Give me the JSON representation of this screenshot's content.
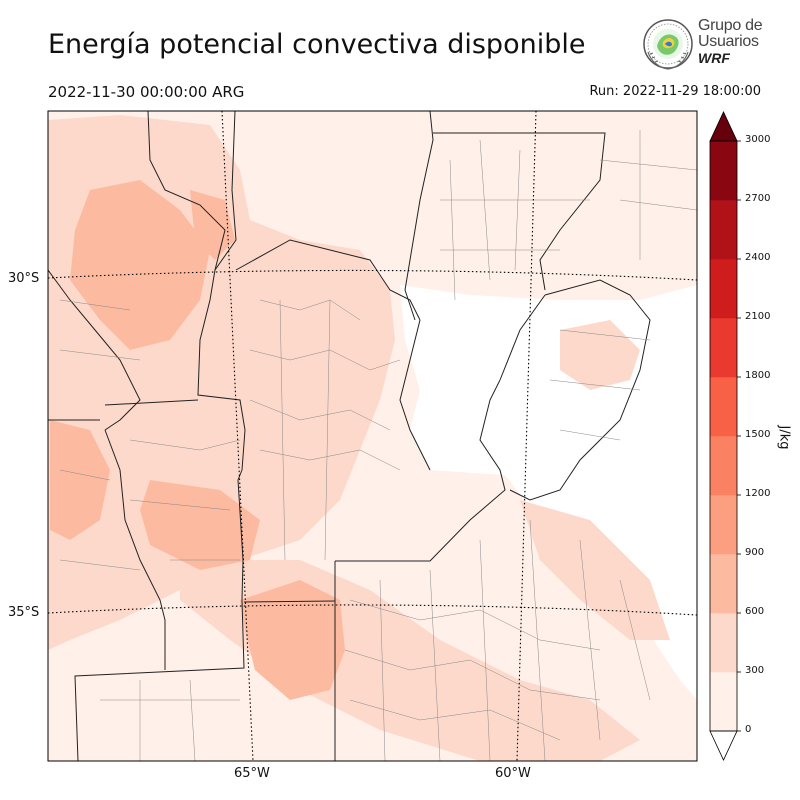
{
  "header": {
    "title": "Energía potencial convectiva disponible",
    "valid_time": "2022-11-30 00:00:00 ARG",
    "run_time": "Run: 2022-11-29 18:00:00"
  },
  "logo": {
    "line1": "Grupo de",
    "line2": "Usuarios",
    "brand": "WRF"
  },
  "map": {
    "lat_labels": [
      "30°S",
      "35°S"
    ],
    "lon_labels": [
      "65°W",
      "60°W"
    ]
  },
  "colorbar": {
    "unit": "J/kg",
    "ticks": [
      "0",
      "300",
      "600",
      "900",
      "1200",
      "1500",
      "1800",
      "2100",
      "2400",
      "2700",
      "3000"
    ],
    "colors": [
      "#fff0e9",
      "#fdd9cb",
      "#fcbba0",
      "#fc9f80",
      "#fa8262",
      "#f86146",
      "#ea3a30",
      "#cf1d1e",
      "#b11218",
      "#8a0712",
      "#67000d"
    ],
    "extend": "both"
  }
}
